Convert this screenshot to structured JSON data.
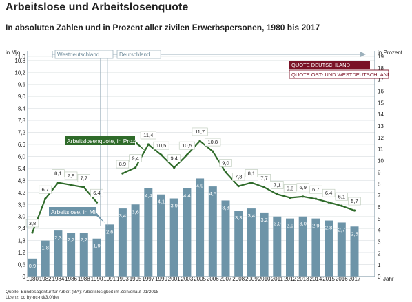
{
  "title": "Arbeitslose und Arbeitslosenquote",
  "subtitle": "In absoluten Zahlen und in Prozent aller zivilen Erwerbspersonen, 1980 bis 2017",
  "footer": {
    "source": "Quelle: Bundesagentur für Arbeit (BA): Arbeitslosigkeit im Zeitverlauf 01/2018",
    "license": "Lizenz: cc by-nc-nd/3.0/de/"
  },
  "chart_data": {
    "type": "bar",
    "x_label": "Jahr",
    "y_left_label": "in Mio.",
    "y_right_label": "in Prozent",
    "y_left_range": [
      0,
      11.0
    ],
    "y_left_ticks": [
      "0",
      "0,6",
      "1,2",
      "1,8",
      "2,4",
      "3,0",
      "3,6",
      "4,2",
      "4,8",
      "5,4",
      "6,0",
      "6,6",
      "7,2",
      "7,8",
      "8,4",
      "9,0",
      "9,6",
      "10,2",
      "10,8",
      "11,0"
    ],
    "y_right_range": [
      0,
      19
    ],
    "y_right_ticks": [
      "0",
      "1",
      "2",
      "3",
      "4",
      "5",
      "6",
      "7",
      "8",
      "9",
      "10",
      "11",
      "12",
      "13",
      "14",
      "15",
      "16",
      "17",
      "18",
      "19"
    ],
    "x_tick_labels": [
      "1980",
      "1982",
      "1984",
      "1986",
      "1988",
      "1990",
      "1991",
      "1993",
      "1995",
      "1997",
      "1999",
      "2001",
      "2003",
      "2005",
      "2006",
      "2007",
      "2008",
      "2009",
      "2010",
      "2011",
      "2012",
      "2013",
      "2014",
      "2015",
      "2016",
      "2017"
    ],
    "periods": [
      {
        "name": "Westdeutschland",
        "from": "1980",
        "to": "1990"
      },
      {
        "name": "Deutschland",
        "from": "1991",
        "to": "2017"
      }
    ],
    "series": [
      {
        "name": "Arbeitslose, in Mio.",
        "kind": "bar",
        "color": "#6d94a8",
        "categories": [
          "1980",
          "1982",
          "1984",
          "1986",
          "1988",
          "1990",
          "1991",
          "1993",
          "1995",
          "1997",
          "1999",
          "2001",
          "2003",
          "2005",
          "2006",
          "2007",
          "2008",
          "2009",
          "2010",
          "2011",
          "2012",
          "2013",
          "2014",
          "2015",
          "2016",
          "2017"
        ],
        "values": [
          0.9,
          1.8,
          2.3,
          2.2,
          2.2,
          1.9,
          2.6,
          3.4,
          3.6,
          4.4,
          4.1,
          3.9,
          4.4,
          4.9,
          4.5,
          3.8,
          3.3,
          3.4,
          3.2,
          3.0,
          2.9,
          3.0,
          2.9,
          2.8,
          2.7,
          2.5
        ],
        "labels": [
          "0,9",
          "1,8",
          "2,3",
          "2,2",
          "2,2",
          "1,9",
          "2,6",
          "3,4",
          "3,6",
          "4,4",
          "4,1",
          "3,9",
          "4,4",
          "4,9",
          "4,5",
          "3,8",
          "3,3",
          "3,4",
          "3,2",
          "3,0",
          "2,9",
          "3,0",
          "2,9",
          "2,8",
          "2,7",
          "2,5"
        ]
      },
      {
        "name": "Arbeitslosenquote, in Prozent",
        "kind": "line",
        "color": "#2f6b2a",
        "segments": [
          {
            "categories": [
              "1980",
              "1982",
              "1984",
              "1986",
              "1988",
              "1990"
            ],
            "values": [
              3.8,
              6.7,
              8.1,
              7.9,
              7.7,
              6.4
            ],
            "labels": [
              "3,8",
              "6,7",
              "8,1",
              "7,9",
              "7,7",
              "6,4"
            ]
          },
          {
            "categories": [
              "1993",
              "1995",
              "1997",
              "1999",
              "2001",
              "2003",
              "2005",
              "2006",
              "2007",
              "2008",
              "2009",
              "2010",
              "2011",
              "2012",
              "2013",
              "2014",
              "2015",
              "2016",
              "2017"
            ],
            "values": [
              8.9,
              9.4,
              11.4,
              10.5,
              9.4,
              10.5,
              11.7,
              10.8,
              9.0,
              7.8,
              8.1,
              7.7,
              7.1,
              6.8,
              6.9,
              6.7,
              6.4,
              6.1,
              5.7
            ],
            "labels": [
              "8,9",
              "9,4",
              "11,4",
              "10,5",
              "9,4",
              "10,5",
              "11,7",
              "10,8",
              "9,0",
              "7,8",
              "8,1",
              "7,7",
              "7,1",
              "6,8",
              "6,9",
              "6,7",
              "6,4",
              "6,1",
              "5,7"
            ]
          }
        ]
      }
    ],
    "legend": {
      "placement": "top-right",
      "entries": [
        {
          "label": "QUOTE DEUTSCHLAND",
          "color": "#7a1226"
        },
        {
          "label": "QUOTE OST- UND WESTDEUTSCHLAND",
          "color": "#7a1226"
        }
      ]
    },
    "annotations": [
      {
        "text": "Arbeitslosenquote, in Prozent",
        "series": "line",
        "color": "#2f6b2a"
      },
      {
        "text": "Arbeitslose, in Mio.",
        "series": "bar",
        "color": "#6d94a8"
      }
    ],
    "colors": {
      "bar": "#6d94a8",
      "line": "#2f6b2a",
      "axis": "#8ea4b0",
      "legend": "#7a1226"
    }
  }
}
